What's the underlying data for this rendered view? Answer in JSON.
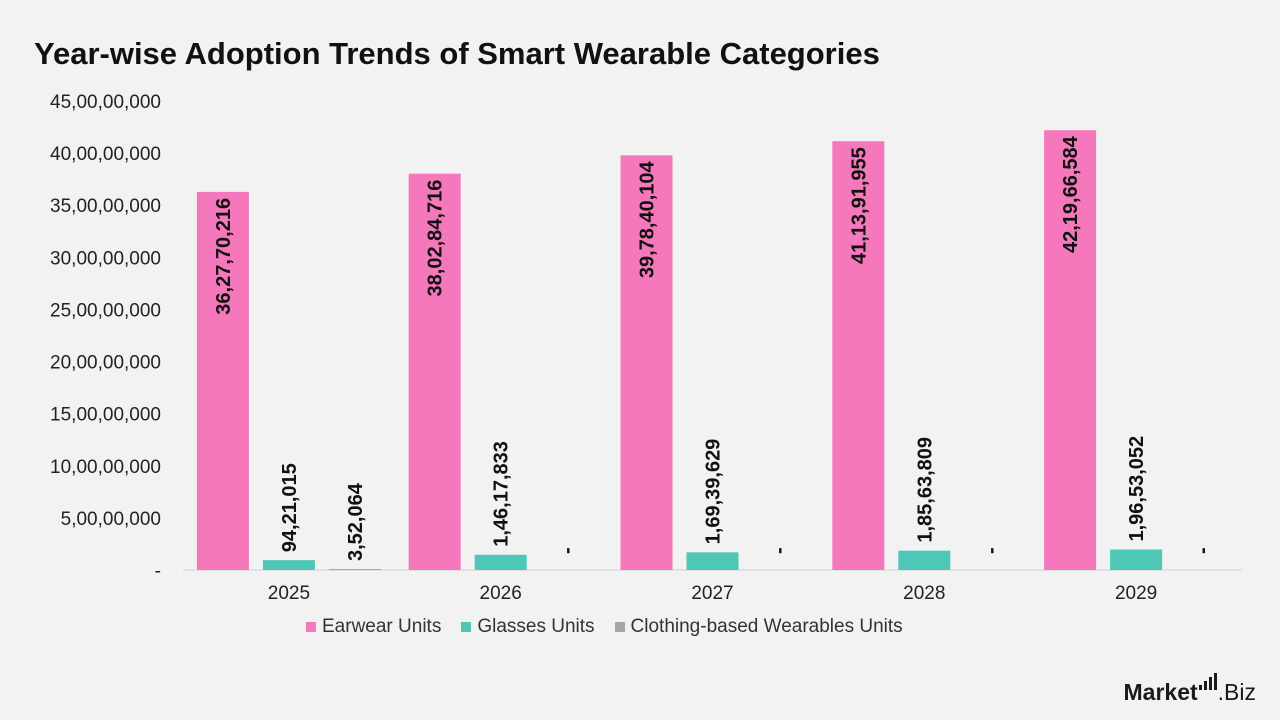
{
  "brand": {
    "name_bold": "Market",
    "name_rest": ".Biz",
    "logo_icon": "bars-icon"
  },
  "chart_data": {
    "type": "bar",
    "title": "Year-wise Adoption Trends of Smart Wearable Categories",
    "categories": [
      "2025",
      "2026",
      "2027",
      "2028",
      "2029"
    ],
    "series": [
      {
        "name": "Earwear Units",
        "color": "#f478bb",
        "values": [
          362770216,
          380284716,
          397840104,
          411391955,
          421966584
        ],
        "labels": [
          "36,27,70,216",
          "38,02,84,716",
          "39,78,40,104",
          "41,13,91,955",
          "42,19,66,584"
        ]
      },
      {
        "name": "Glasses Units",
        "color": "#4fc7b8",
        "values": [
          9421015,
          14617833,
          16939629,
          18563809,
          19653052
        ],
        "labels": [
          "94,21,015",
          "1,46,17,833",
          "1,69,39,629",
          "1,85,63,809",
          "1,96,53,052"
        ]
      },
      {
        "name": "Clothing-based Wearables Units",
        "color": "#a6a6a6",
        "values": [
          352064,
          0,
          0,
          0,
          0
        ],
        "labels": [
          "3,52,064",
          "-",
          "-",
          "-",
          "-"
        ]
      }
    ],
    "ylim": [
      0,
      450000000
    ],
    "yticks": [
      0,
      50000000,
      100000000,
      150000000,
      200000000,
      250000000,
      300000000,
      350000000,
      400000000,
      450000000
    ],
    "ytick_labels": [
      "-",
      "5,00,00,000",
      "10,00,00,000",
      "15,00,00,000",
      "20,00,00,000",
      "25,00,00,000",
      "30,00,00,000",
      "35,00,00,000",
      "40,00,00,000",
      "45,00,00,000"
    ],
    "grid": false,
    "legend_position": "bottom"
  }
}
